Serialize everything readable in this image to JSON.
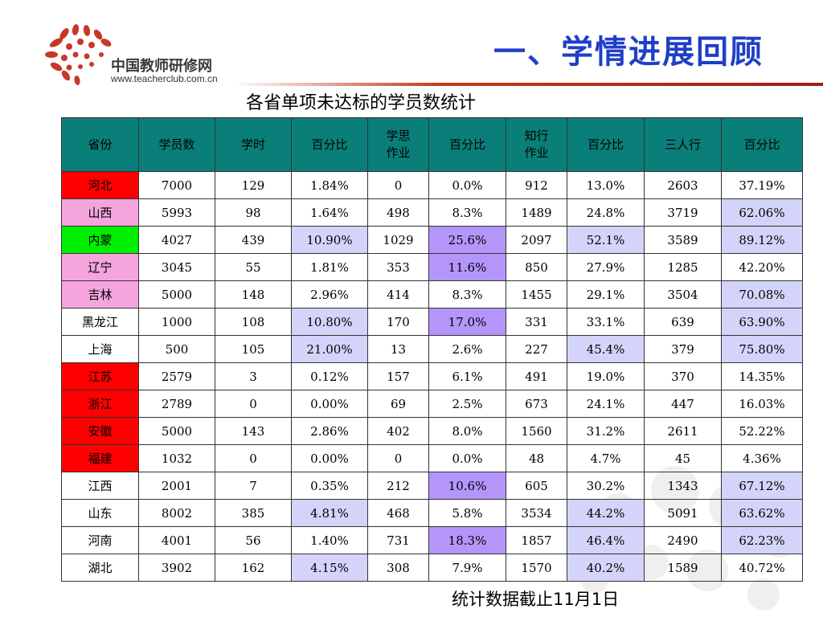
{
  "header": {
    "title": "一、学情进展回顾",
    "logo_name": "中国教师研修网",
    "logo_url": "www.teacherclub.com.cn"
  },
  "table_title": "各省单项未达标的学员数统计",
  "colors": {
    "header_bg": "#0a7e78",
    "title_blue": "#1f3fc8",
    "highlight_blue": "#d4d4fa",
    "highlight_purple": "#b495fa",
    "province_red": "#ff0000",
    "province_pink": "#f6a4dd",
    "province_green": "#00ee00"
  },
  "columns": [
    "省份",
    "学员数",
    "学时",
    "百分比",
    "学思\n作业",
    "百分比",
    "知行\n作业",
    "百分比",
    "三人行",
    "百分比"
  ],
  "rows": [
    {
      "cells": [
        "河北",
        "7000",
        "129",
        "1.84%",
        "0",
        "0.0%",
        "912",
        "13.0%",
        "2603",
        "37.19%"
      ],
      "province_status": "red",
      "hl": [
        "",
        "",
        "",
        "",
        "",
        "",
        "",
        "",
        "",
        ""
      ]
    },
    {
      "cells": [
        "山西",
        "5993",
        "98",
        "1.64%",
        "498",
        "8.3%",
        "1489",
        "24.8%",
        "3719",
        "62.06%"
      ],
      "province_status": "pink",
      "hl": [
        "",
        "",
        "",
        "",
        "",
        "",
        "",
        "",
        "",
        "blue"
      ]
    },
    {
      "cells": [
        "内蒙",
        "4027",
        "439",
        "10.90%",
        "1029",
        "25.6%",
        "2097",
        "52.1%",
        "3589",
        "89.12%"
      ],
      "province_status": "green",
      "hl": [
        "",
        "",
        "",
        "blue",
        "",
        "purple",
        "",
        "blue",
        "",
        "blue"
      ]
    },
    {
      "cells": [
        "辽宁",
        "3045",
        "55",
        "1.81%",
        "353",
        "11.6%",
        "850",
        "27.9%",
        "1285",
        "42.20%"
      ],
      "province_status": "pink",
      "hl": [
        "",
        "",
        "",
        "",
        "",
        "purple",
        "",
        "",
        "",
        ""
      ]
    },
    {
      "cells": [
        "吉林",
        "5000",
        "148",
        "2.96%",
        "414",
        "8.3%",
        "1455",
        "29.1%",
        "3504",
        "70.08%"
      ],
      "province_status": "pink",
      "hl": [
        "",
        "",
        "",
        "",
        "",
        "",
        "",
        "",
        "",
        "blue"
      ]
    },
    {
      "cells": [
        "黑龙江",
        "1000",
        "108",
        "10.80%",
        "170",
        "17.0%",
        "331",
        "33.1%",
        "639",
        "63.90%"
      ],
      "province_status": "",
      "hl": [
        "",
        "",
        "",
        "blue",
        "",
        "purple",
        "",
        "",
        "",
        "blue"
      ]
    },
    {
      "cells": [
        "上海",
        "500",
        "105",
        "21.00%",
        "13",
        "2.6%",
        "227",
        "45.4%",
        "379",
        "75.80%"
      ],
      "province_status": "",
      "hl": [
        "",
        "",
        "",
        "blue",
        "",
        "",
        "",
        "blue",
        "",
        "blue"
      ]
    },
    {
      "cells": [
        "江苏",
        "2579",
        "3",
        "0.12%",
        "157",
        "6.1%",
        "491",
        "19.0%",
        "370",
        "14.35%"
      ],
      "province_status": "red",
      "hl": [
        "",
        "",
        "",
        "",
        "",
        "",
        "",
        "",
        "",
        ""
      ]
    },
    {
      "cells": [
        "浙江",
        "2789",
        "0",
        "0.00%",
        "69",
        "2.5%",
        "673",
        "24.1%",
        "447",
        "16.03%"
      ],
      "province_status": "red",
      "hl": [
        "",
        "",
        "",
        "",
        "",
        "",
        "",
        "",
        "",
        ""
      ]
    },
    {
      "cells": [
        "安徽",
        "5000",
        "143",
        "2.86%",
        "402",
        "8.0%",
        "1560",
        "31.2%",
        "2611",
        "52.22%"
      ],
      "province_status": "red",
      "hl": [
        "",
        "",
        "",
        "",
        "",
        "",
        "",
        "",
        "",
        ""
      ]
    },
    {
      "cells": [
        "福建",
        "1032",
        "0",
        "0.00%",
        "0",
        "0.0%",
        "48",
        "4.7%",
        "45",
        "4.36%"
      ],
      "province_status": "red",
      "hl": [
        "",
        "",
        "",
        "",
        "",
        "",
        "",
        "",
        "",
        ""
      ]
    },
    {
      "cells": [
        "江西",
        "2001",
        "7",
        "0.35%",
        "212",
        "10.6%",
        "605",
        "30.2%",
        "1343",
        "67.12%"
      ],
      "province_status": "",
      "hl": [
        "",
        "",
        "",
        "",
        "",
        "purple",
        "",
        "",
        "",
        "blue"
      ]
    },
    {
      "cells": [
        "山东",
        "8002",
        "385",
        "4.81%",
        "468",
        "5.8%",
        "3534",
        "44.2%",
        "5091",
        "63.62%"
      ],
      "province_status": "",
      "hl": [
        "",
        "",
        "",
        "blue",
        "",
        "",
        "",
        "blue",
        "",
        "blue"
      ]
    },
    {
      "cells": [
        "河南",
        "4001",
        "56",
        "1.40%",
        "731",
        "18.3%",
        "1857",
        "46.4%",
        "2490",
        "62.23%"
      ],
      "province_status": "",
      "hl": [
        "",
        "",
        "",
        "",
        "",
        "purple",
        "",
        "blue",
        "",
        "blue"
      ]
    },
    {
      "cells": [
        "湖北",
        "3902",
        "162",
        "4.15%",
        "308",
        "7.9%",
        "1570",
        "40.2%",
        "1589",
        "40.72%"
      ],
      "province_status": "",
      "hl": [
        "",
        "",
        "",
        "blue",
        "",
        "",
        "",
        "blue",
        "",
        ""
      ]
    }
  ],
  "footnote": "统计数据截止11月1日"
}
